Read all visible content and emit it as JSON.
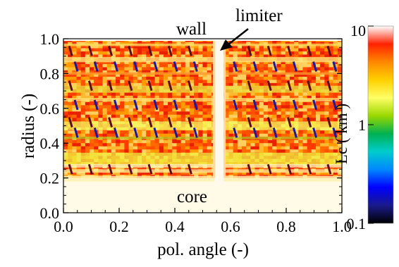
{
  "chart_data": {
    "type": "heatmap",
    "title": "",
    "xlabel": "pol. angle (-)",
    "ylabel": "radius (-)",
    "xlim": [
      0.0,
      1.0
    ],
    "ylim": [
      0.0,
      1.0
    ],
    "x_ticks": [
      "0.0",
      "0.2",
      "0.4",
      "0.6",
      "0.8",
      "1.0"
    ],
    "y_ticks": [
      "0.0",
      "0.2",
      "0.4",
      "0.6",
      "0.8",
      "1.0"
    ],
    "annotations": {
      "wall": "wall",
      "limiter": "limiter",
      "core": "core"
    },
    "limiter_position": 0.56,
    "core_boundary_radius": 0.2,
    "colorbar": {
      "label": "Lc ( km )",
      "scale": "log",
      "range": [
        0.1,
        10
      ],
      "tick_labels": [
        "10",
        "1",
        "0.1"
      ],
      "colors": [
        "#000000",
        "#1a1a8c",
        "#0000ff",
        "#0088ff",
        "#00cccc",
        "#00b050",
        "#9ad800",
        "#ffff66",
        "#ffd000",
        "#ff8800",
        "#ff2200",
        "#ffffff"
      ]
    }
  }
}
